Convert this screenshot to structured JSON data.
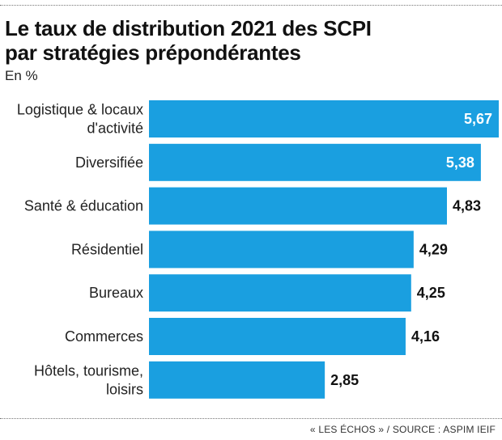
{
  "header": {
    "title_line1": "Le taux de distribution 2021 des SCPI",
    "title_line2": "par stratégies prépondérantes",
    "unit": "En %"
  },
  "footer": {
    "source": "« LES ÉCHOS » / SOURCE : ASPIM IEIF"
  },
  "colors": {
    "bar": "#1a9fe0",
    "label_inside": "#ffffff",
    "label_outside": "#111111"
  },
  "chart_data": {
    "type": "bar",
    "orientation": "horizontal",
    "title": "Le taux de distribution 2021 des SCPI par stratégies prépondérantes",
    "subtitle": "En %",
    "categories": [
      [
        "Logistique & locaux",
        "d'activité"
      ],
      [
        "Diversifiée"
      ],
      [
        "Santé & éducation"
      ],
      [
        "Résidentiel"
      ],
      [
        "Bureaux"
      ],
      [
        "Commerces"
      ],
      [
        "Hôtels, tourisme,",
        "loisirs"
      ]
    ],
    "values": [
      5.67,
      5.38,
      4.83,
      4.29,
      4.25,
      4.16,
      2.85
    ],
    "labels": [
      "5,67",
      "5,38",
      "4,83",
      "4,29",
      "4,25",
      "4,16",
      "2,85"
    ],
    "label_inside": [
      true,
      true,
      false,
      false,
      false,
      false,
      false
    ],
    "xlim": [
      0,
      5.67
    ],
    "xlabel": "",
    "ylabel": "",
    "grid": false
  }
}
